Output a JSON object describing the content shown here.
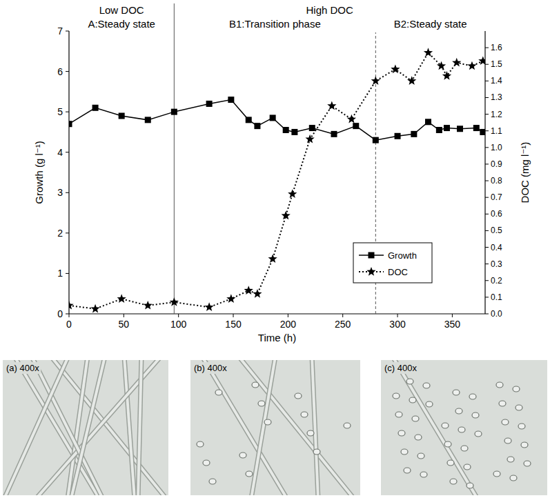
{
  "chart_data": {
    "type": "line",
    "x_label": "Time (h)",
    "y_label": "Growth (g l⁻¹)",
    "y2_label": "DOC (mg l⁻¹)",
    "xlim": [
      0,
      380
    ],
    "xticks": [
      0,
      50,
      100,
      150,
      200,
      250,
      300,
      350
    ],
    "ylim": [
      0,
      7
    ],
    "yticks": [
      0,
      1,
      2,
      3,
      4,
      5,
      6,
      7
    ],
    "y2lim": [
      0,
      1.7
    ],
    "y2ticks": [
      {
        "value": 0,
        "label": "0.0"
      },
      {
        "value": 0.1,
        "label": "0.1"
      },
      {
        "value": 0.2,
        "label": "0.2"
      },
      {
        "value": 0.3,
        "label": "0.3"
      },
      {
        "value": 0.4,
        "label": "0.4"
      },
      {
        "value": 0.5,
        "label": "0.5"
      },
      {
        "value": 0.6,
        "label": "0.6"
      },
      {
        "value": 0.7,
        "label": "0.7"
      },
      {
        "value": 0.8,
        "label": "0.8"
      },
      {
        "value": 0.9,
        "label": "0.9"
      },
      {
        "value": 1,
        "label": "1.0"
      },
      {
        "value": 1.1,
        "label": "1.1"
      },
      {
        "value": 1.2,
        "label": "1.2"
      },
      {
        "value": 1.3,
        "label": "1.3"
      },
      {
        "value": 1.4,
        "label": "1.4"
      },
      {
        "value": 1.5,
        "label": "1.5"
      },
      {
        "value": 1.6,
        "label": "1.6"
      }
    ],
    "legend": "lower right",
    "series": [
      {
        "name": "Growth",
        "color": "#000000",
        "marker": "square",
        "line_style": "solid",
        "x": [
          0,
          24,
          48,
          72,
          96,
          128,
          148,
          164,
          172,
          186,
          198,
          206,
          222,
          242,
          262,
          280,
          300,
          315,
          328,
          338,
          345,
          357,
          372,
          378
        ],
        "values": [
          4.7,
          5.1,
          4.9,
          4.8,
          5.0,
          5.2,
          5.3,
          4.8,
          4.65,
          4.85,
          4.55,
          4.5,
          4.6,
          4.45,
          4.65,
          4.3,
          4.4,
          4.45,
          4.75,
          4.55,
          4.6,
          4.58,
          4.6,
          4.5
        ]
      },
      {
        "name": "DOC",
        "color": "#000000",
        "marker": "star",
        "line_style": "dotted",
        "axis": "y2",
        "x": [
          0,
          24,
          48,
          72,
          96,
          128,
          148,
          164,
          172,
          186,
          198,
          204,
          220,
          240,
          258,
          280,
          298,
          313,
          328,
          340,
          345,
          354,
          368,
          378
        ],
        "values": [
          0.05,
          0.03,
          0.09,
          0.05,
          0.07,
          0.04,
          0.09,
          0.14,
          0.12,
          0.33,
          0.59,
          0.72,
          1.05,
          1.25,
          1.17,
          1.4,
          1.47,
          1.4,
          1.57,
          1.49,
          1.43,
          1.51,
          1.49,
          1.52
        ]
      }
    ],
    "conditions": [
      {
        "label": "Low DOC",
        "x": [
          0,
          96
        ]
      },
      {
        "label": "High DOC",
        "x": [
          96,
          380
        ]
      }
    ],
    "phases": [
      {
        "label": "A:Steady state",
        "x": [
          0,
          96
        ]
      },
      {
        "label": "B1:Transition phase",
        "x": [
          96,
          280
        ]
      },
      {
        "label": "B2:Steady state",
        "x": [
          280,
          380
        ]
      }
    ],
    "dividers": [
      {
        "x": 96,
        "line_style": "solid"
      },
      {
        "x": 280,
        "line_style": "dashed"
      }
    ],
    "micrographs": [
      {
        "label": "(a) 400x"
      },
      {
        "label": "(b) 400x"
      },
      {
        "label": "(c) 400x"
      }
    ]
  }
}
